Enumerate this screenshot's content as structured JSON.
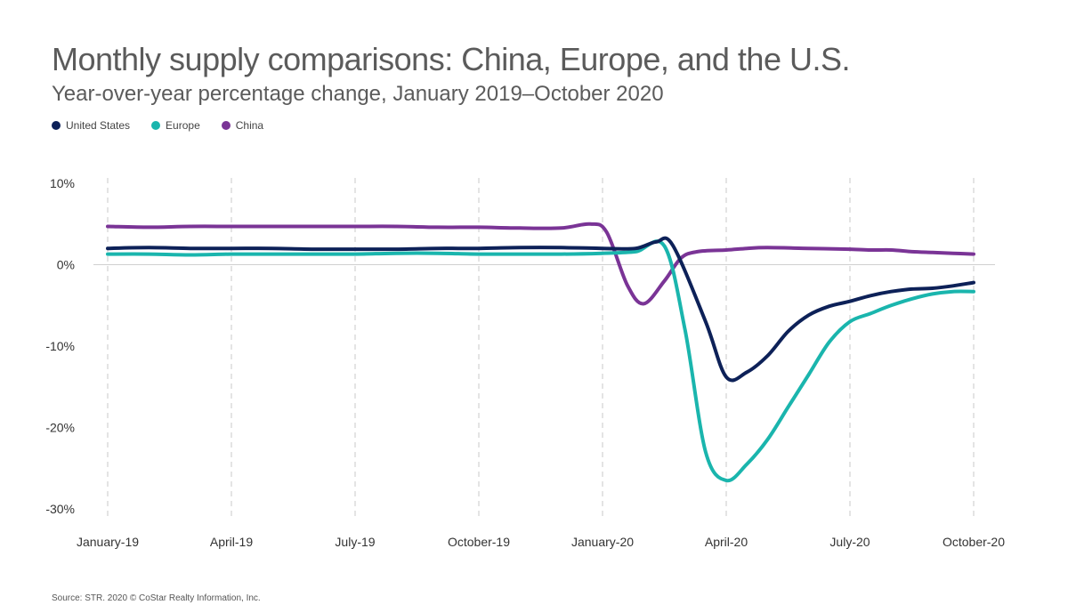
{
  "chart_data": {
    "type": "line",
    "title": "Monthly supply comparisons: China, Europe, and the U.S.",
    "subtitle": "Year-over-year percentage change, January 2019–October 2020",
    "source": "Source: STR. 2020 © CoStar Realty Information, Inc.",
    "xlabel": "",
    "ylabel": "",
    "ylim": [
      -30,
      10
    ],
    "y_ticks": [
      10,
      0,
      -10,
      -20,
      -30
    ],
    "y_tick_labels": [
      "10%",
      "0%",
      "-10%",
      "-20%",
      "-30%"
    ],
    "x_ticks": [
      0,
      3,
      6,
      9,
      12,
      15,
      18,
      21
    ],
    "x_tick_labels": [
      "January-19",
      "April-19",
      "July-19",
      "October-19",
      "January-20",
      "April-20",
      "July-20",
      "October-20"
    ],
    "legend_position": "top-left",
    "series": [
      {
        "name": "United States",
        "color": "#0d2158",
        "points": [
          [
            0,
            2.0
          ],
          [
            1,
            2.1
          ],
          [
            2,
            2.0
          ],
          [
            3,
            2.0
          ],
          [
            4,
            2.0
          ],
          [
            5,
            1.9
          ],
          [
            6,
            1.9
          ],
          [
            7,
            1.9
          ],
          [
            8,
            2.0
          ],
          [
            9,
            2.0
          ],
          [
            10,
            2.1
          ],
          [
            11,
            2.1
          ],
          [
            12,
            2.0
          ],
          [
            12.8,
            2.0
          ],
          [
            13.3,
            2.8
          ],
          [
            13.7,
            2.4
          ],
          [
            14.5,
            -7
          ],
          [
            15,
            -13.8
          ],
          [
            15.5,
            -13.2
          ],
          [
            16,
            -11.2
          ],
          [
            16.5,
            -8.2
          ],
          [
            17,
            -6.2
          ],
          [
            17.5,
            -5.1
          ],
          [
            18,
            -4.5
          ],
          [
            18.5,
            -3.8
          ],
          [
            19,
            -3.3
          ],
          [
            19.5,
            -3.0
          ],
          [
            20,
            -2.9
          ],
          [
            20.5,
            -2.6
          ],
          [
            21,
            -2.2
          ]
        ]
      },
      {
        "name": "Europe",
        "color": "#1ab5ad",
        "points": [
          [
            0,
            1.3
          ],
          [
            1,
            1.3
          ],
          [
            2,
            1.2
          ],
          [
            3,
            1.3
          ],
          [
            4,
            1.3
          ],
          [
            5,
            1.3
          ],
          [
            6,
            1.3
          ],
          [
            7,
            1.4
          ],
          [
            8,
            1.4
          ],
          [
            9,
            1.3
          ],
          [
            10,
            1.3
          ],
          [
            11,
            1.3
          ],
          [
            12,
            1.4
          ],
          [
            12.8,
            1.6
          ],
          [
            13.5,
            2.3
          ],
          [
            14,
            -8
          ],
          [
            14.5,
            -23
          ],
          [
            15,
            -26.5
          ],
          [
            15.5,
            -24.5
          ],
          [
            16,
            -21.5
          ],
          [
            16.5,
            -17.5
          ],
          [
            17,
            -13.5
          ],
          [
            17.5,
            -9.5
          ],
          [
            18,
            -7.0
          ],
          [
            18.5,
            -6.0
          ],
          [
            19,
            -5.0
          ],
          [
            19.5,
            -4.2
          ],
          [
            20,
            -3.6
          ],
          [
            20.5,
            -3.3
          ],
          [
            21,
            -3.3
          ]
        ]
      },
      {
        "name": "China",
        "color": "#7a3496",
        "points": [
          [
            0,
            4.7
          ],
          [
            1,
            4.6
          ],
          [
            2,
            4.7
          ],
          [
            3,
            4.7
          ],
          [
            4,
            4.7
          ],
          [
            5,
            4.7
          ],
          [
            6,
            4.7
          ],
          [
            7,
            4.7
          ],
          [
            8,
            4.6
          ],
          [
            9,
            4.6
          ],
          [
            10,
            4.5
          ],
          [
            11,
            4.5
          ],
          [
            11.7,
            5.0
          ],
          [
            12.1,
            4.0
          ],
          [
            12.6,
            -2.5
          ],
          [
            13,
            -4.8
          ],
          [
            13.5,
            -2.0
          ],
          [
            13.9,
            0.8
          ],
          [
            14.3,
            1.6
          ],
          [
            15,
            1.8
          ],
          [
            15.5,
            2.0
          ],
          [
            16,
            2.1
          ],
          [
            17,
            2.0
          ],
          [
            18,
            1.9
          ],
          [
            18.5,
            1.8
          ],
          [
            19,
            1.8
          ],
          [
            19.5,
            1.6
          ],
          [
            20,
            1.5
          ],
          [
            20.5,
            1.4
          ],
          [
            21,
            1.3
          ]
        ]
      }
    ]
  }
}
